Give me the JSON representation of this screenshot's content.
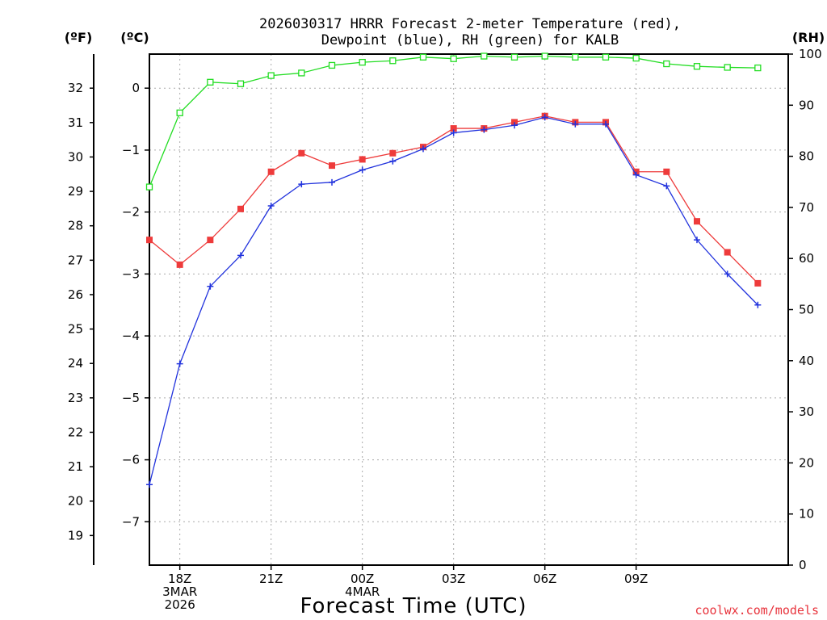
{
  "chart_data": {
    "type": "line",
    "title": {
      "line1": "2026030317 HRRR Forecast 2-meter Temperature (red),",
      "line2": "Dewpoint (blue), RH (green) for KALB"
    },
    "unit_labels": {
      "fahrenheit": "(ºF)",
      "celsius": "(ºC)",
      "rh": "(RH)"
    },
    "xlabel": "Forecast Time (UTC)",
    "credit": "coolwx.com/models",
    "x_hours": [
      17,
      18,
      19,
      20,
      21,
      22,
      23,
      24,
      25,
      26,
      27,
      28,
      29,
      30,
      31,
      32,
      33,
      34,
      35,
      36,
      37
    ],
    "xlim": [
      17,
      38
    ],
    "x_ticks": [
      {
        "hour": 18,
        "labels": [
          "18Z",
          "3MAR",
          "2026"
        ]
      },
      {
        "hour": 21,
        "labels": [
          "21Z"
        ]
      },
      {
        "hour": 24,
        "labels": [
          "00Z",
          "4MAR"
        ]
      },
      {
        "hour": 27,
        "labels": [
          "03Z"
        ]
      },
      {
        "hour": 30,
        "labels": [
          "06Z"
        ]
      },
      {
        "hour": 33,
        "labels": [
          "09Z"
        ]
      }
    ],
    "celsius_axis": {
      "range": [
        -7.7,
        0.55
      ],
      "ticks": [
        0,
        -1,
        -2,
        -3,
        -4,
        -5,
        -6,
        -7
      ]
    },
    "fahrenheit_axis": {
      "range": [
        18.5,
        32.8
      ],
      "ticks": [
        32,
        31,
        30,
        29,
        28,
        27,
        26,
        25,
        24,
        23,
        22,
        21,
        20,
        19
      ]
    },
    "rh_axis": {
      "range": [
        0,
        100
      ],
      "ticks": [
        0,
        10,
        20,
        30,
        40,
        50,
        60,
        70,
        80,
        90,
        100
      ]
    },
    "series": [
      {
        "name": "Temperature",
        "color": "#ee3b3b",
        "marker": "square",
        "axis": "celsius",
        "values": [
          -2.45,
          -2.85,
          -2.45,
          -1.95,
          -1.35,
          -1.05,
          -1.25,
          -1.15,
          -1.05,
          -0.95,
          -0.65,
          -0.65,
          -0.55,
          -0.45,
          -0.55,
          -0.55,
          -1.35,
          -1.35,
          -2.15,
          -2.65,
          -3.15
        ]
      },
      {
        "name": "Dewpoint",
        "color": "#2233dd",
        "marker": "plus",
        "axis": "celsius",
        "values": [
          -6.4,
          -4.45,
          -3.2,
          -2.7,
          -1.9,
          -1.55,
          -1.52,
          -1.32,
          -1.18,
          -0.98,
          -0.72,
          -0.67,
          -0.6,
          -0.47,
          -0.58,
          -0.58,
          -1.4,
          -1.58,
          -2.45,
          -3.0,
          -3.5
        ]
      },
      {
        "name": "RH",
        "color": "#22dd22",
        "marker": "open-square",
        "axis": "rh",
        "values": [
          74,
          88.5,
          94.5,
          94.2,
          95.8,
          96.3,
          97.8,
          98.4,
          98.7,
          99.4,
          99.1,
          99.6,
          99.4,
          99.6,
          99.4,
          99.4,
          99.2,
          98.1,
          97.6,
          97.4,
          97.3
        ]
      }
    ]
  }
}
